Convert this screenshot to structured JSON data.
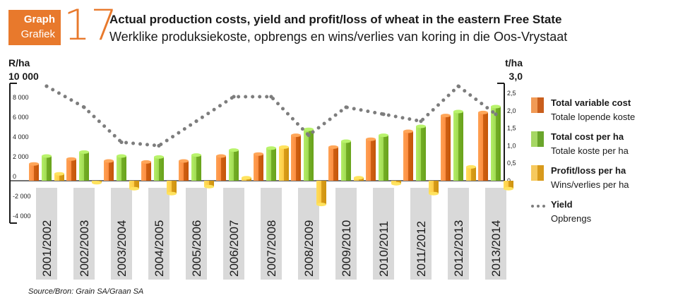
{
  "badge": {
    "line1": "Graph",
    "line2": "Grafiek"
  },
  "graph_number": "17",
  "title_en": "Actual production costs, yield and profit/loss of wheat in the eastern Free State",
  "title_af": "Werklike produksiekoste, opbrengs en wins/verlies van koring in die Oos-Vrystaat",
  "source": "Source/Bron: Grain SA/Graan SA",
  "colors": {
    "variable_cost": "#e8792c",
    "total_cost": "#8cc63f",
    "profit_loss": "#f2b632",
    "yield": "#7d7d7d",
    "category_band": "#d9d9d9"
  },
  "legend": [
    {
      "series": "variable_cost",
      "en": "Total variable cost",
      "af": "Totale lopende koste"
    },
    {
      "series": "total_cost",
      "en": "Total cost per ha",
      "af": "Totale koste per ha"
    },
    {
      "series": "profit_loss",
      "en": "Profit/loss per ha",
      "af": "Wins/verlies per ha"
    },
    {
      "series": "yield",
      "en": "Yield",
      "af": "Opbrengs"
    }
  ],
  "chart_data": {
    "type": "bar",
    "categories": [
      "2001/2002",
      "2002/2003",
      "2003/2004",
      "2004/2005",
      "2005/2006",
      "2006/2007",
      "2007/2008",
      "2008/2009",
      "2009/2010",
      "2010/2011",
      "2011/2012",
      "2012/2013",
      "2013/2014"
    ],
    "left_axis": {
      "unit": "R/ha",
      "max_label": "10 000",
      "ylim": [
        -4000,
        10000
      ],
      "ticks": [
        -4000,
        -2000,
        0,
        2000,
        4000,
        6000,
        8000
      ],
      "tick_labels": [
        "-4 000",
        "-2 000",
        "0",
        "2 000",
        "4 000",
        "6 000",
        "8 000"
      ]
    },
    "right_axis": {
      "unit": "t/ha",
      "max_label": "3,0",
      "ylim": [
        0,
        3.0
      ],
      "ticks": [
        0,
        0.5,
        1.0,
        1.5,
        2.0,
        2.5
      ],
      "tick_labels": [
        "0",
        "0,5",
        "1,0",
        "1,5",
        "2,0",
        "2,5"
      ]
    },
    "series": [
      {
        "key": "variable_cost",
        "name": "Total variable cost",
        "axis": "left",
        "values": [
          1700,
          2200,
          2000,
          1900,
          2000,
          2500,
          2700,
          4600,
          3400,
          4200,
          5000,
          6600,
          6900
        ]
      },
      {
        "key": "total_cost",
        "name": "Total cost per ha",
        "axis": "left",
        "values": [
          2500,
          2900,
          2500,
          2400,
          2600,
          3100,
          3300,
          5200,
          4000,
          4600,
          5500,
          7000,
          7500
        ]
      },
      {
        "key": "profit_loss",
        "name": "Profit/loss per ha",
        "axis": "left",
        "values": [
          700,
          -200,
          -800,
          -1300,
          -600,
          300,
          3400,
          -2400,
          300,
          -300,
          -1300,
          1400,
          -800
        ]
      },
      {
        "key": "yield",
        "name": "Yield",
        "axis": "right",
        "type": "line",
        "values": [
          2.7,
          2.1,
          1.1,
          1.0,
          1.7,
          2.4,
          2.4,
          1.3,
          2.1,
          1.9,
          1.7,
          2.7,
          1.9
        ]
      }
    ]
  }
}
